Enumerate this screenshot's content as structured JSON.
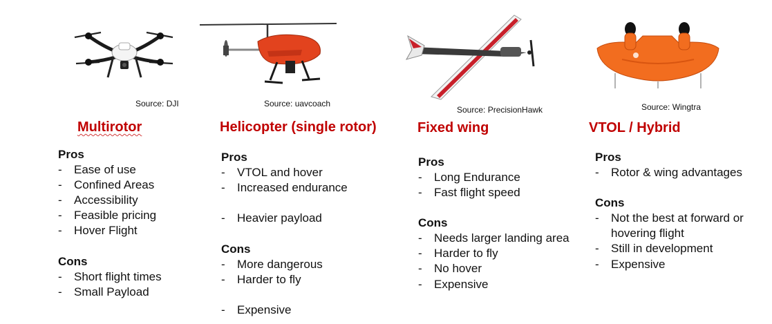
{
  "columns": [
    {
      "title": "Multirotor",
      "source": "Source: DJI",
      "image_icon": "quadcopter-drone-icon",
      "pros_label": "Pros",
      "pros": [
        "Ease of use",
        "Confined Areas",
        "Accessibility",
        "Feasible pricing",
        "Hover Flight"
      ],
      "cons_label": "Cons",
      "cons": [
        "Short flight times",
        "Small Payload"
      ]
    },
    {
      "title": "Helicopter (single rotor)",
      "source": "Source: uavcoach",
      "image_icon": "helicopter-drone-icon",
      "pros_label": "Pros",
      "pros": [
        "VTOL and hover",
        "Increased endurance",
        "Heavier payload"
      ],
      "cons_label": "Cons",
      "cons": [
        "More dangerous",
        "Harder to fly",
        "Expensive"
      ]
    },
    {
      "title": "Fixed wing",
      "source": "Source: PrecisionHawk",
      "image_icon": "fixed-wing-drone-icon",
      "pros_label": "Pros",
      "pros": [
        "Long Endurance",
        "Fast flight speed"
      ],
      "cons_label": "Cons",
      "cons": [
        "Needs larger landing area",
        "Harder to fly",
        "No hover",
        "Expensive"
      ]
    },
    {
      "title": "VTOL / Hybrid",
      "source": "Source: Wingtra",
      "image_icon": "vtol-hybrid-drone-icon",
      "pros_label": "Pros",
      "pros": [
        "Rotor & wing advantages"
      ],
      "cons_label": "Cons",
      "cons": [
        "Not the best at forward or",
        "hovering flight",
        "Still in development",
        "Expensive"
      ]
    }
  ],
  "colors": {
    "title": "#c00000",
    "text": "#111111",
    "helicopter_body": "#e2431e",
    "vtol_body": "#f26d1f",
    "fixed_wing_stripe": "#c8202a"
  }
}
